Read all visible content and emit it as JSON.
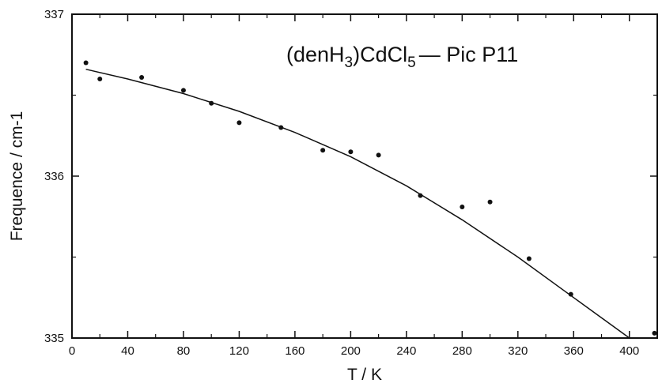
{
  "chart_data": {
    "type": "scatter",
    "title": {
      "prefix": "(denH",
      "sub1": "3",
      "middle": ")CdCl",
      "sub2": "5",
      "suffix": "— Pic P11"
    },
    "xlabel": "T / K",
    "ylabel": "Frequence / cm-1",
    "xlim": [
      0,
      420
    ],
    "ylim": [
      335,
      337
    ],
    "x_ticks": [
      0,
      40,
      80,
      120,
      160,
      200,
      240,
      280,
      320,
      360,
      400
    ],
    "y_ticks": [
      335,
      336,
      337
    ],
    "x_ticks_minor": [
      20,
      60,
      100,
      140,
      180,
      220,
      260,
      300,
      340,
      380
    ],
    "y_ticks_minor": [
      335.5,
      336.5
    ],
    "grid": false,
    "series": [
      {
        "kind": "points",
        "x": [
          10,
          20,
          50,
          80,
          100,
          120,
          150,
          180,
          200,
          220,
          250,
          280,
          300,
          328,
          358,
          418
        ],
        "y": [
          336.7,
          336.6,
          336.61,
          336.53,
          336.45,
          336.33,
          336.3,
          336.16,
          336.15,
          336.13,
          335.88,
          335.81,
          335.84,
          335.49,
          335.27,
          335.03
        ]
      },
      {
        "kind": "fit-line",
        "x": [
          10,
          40,
          80,
          120,
          160,
          200,
          240,
          280,
          320,
          360,
          400,
          416
        ],
        "y": [
          336.66,
          336.6,
          336.51,
          336.4,
          336.27,
          336.12,
          335.94,
          335.73,
          335.5,
          335.25,
          334.98,
          334.95
        ]
      }
    ],
    "colors": {
      "ink": "#111111",
      "background": "#ffffff"
    }
  }
}
